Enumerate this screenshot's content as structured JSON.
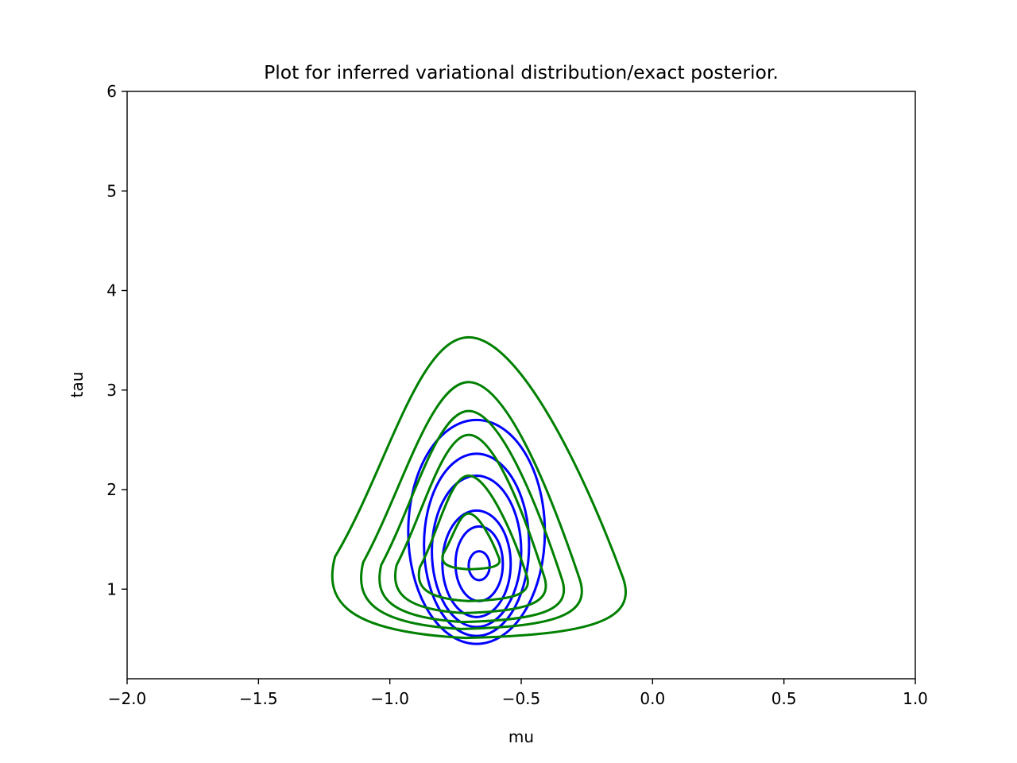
{
  "chart_data": {
    "type": "contour",
    "title": "Plot for inferred variational distribution/exact posterior.",
    "xlabel": "mu",
    "ylabel": "tau",
    "xlim": [
      -2.0,
      1.0
    ],
    "ylim": [
      0.1,
      6.0
    ],
    "xticks": [
      -2.0,
      -1.5,
      -1.0,
      -0.5,
      0.0,
      0.5,
      1.0
    ],
    "xtick_labels": [
      "−2.0",
      "−1.5",
      "−1.0",
      "−0.5",
      "0.0",
      "0.5",
      "1.0"
    ],
    "yticks": [
      1,
      2,
      3,
      4,
      5,
      6
    ],
    "ytick_labels": [
      "1",
      "2",
      "3",
      "4",
      "5",
      "6"
    ],
    "grid": false,
    "series": [
      {
        "color": "#0000ff",
        "levels": [
          {
            "x": [
              -0.93,
              -0.41
            ],
            "y": [
              0.45,
              2.7
            ]
          },
          {
            "x": [
              -0.87,
              -0.47
            ],
            "y": [
              0.53,
              2.36
            ]
          },
          {
            "x": [
              -0.84,
              -0.5
            ],
            "y": [
              0.62,
              2.14
            ]
          },
          {
            "x": [
              -0.8,
              -0.54
            ],
            "y": [
              0.72,
              1.79
            ]
          },
          {
            "x": [
              -0.75,
              -0.57
            ],
            "y": [
              0.88,
              1.63
            ]
          },
          {
            "x": [
              -0.7,
              -0.62
            ],
            "y": [
              1.09,
              1.38
            ]
          }
        ]
      },
      {
        "color": "#008000",
        "peak": {
          "x": -0.7,
          "y": 1.52
        },
        "levels": [
          {
            "x": [
              -1.22,
              -0.09
            ],
            "y": [
              0.51,
              3.53
            ]
          },
          {
            "x": [
              -1.11,
              -0.26
            ],
            "y": [
              0.6,
              3.08
            ]
          },
          {
            "x": [
              -1.04,
              -0.33
            ],
            "y": [
              0.67,
              2.79
            ]
          },
          {
            "x": [
              -0.98,
              -0.4
            ],
            "y": [
              0.76,
              2.55
            ]
          },
          {
            "x": [
              -0.89,
              -0.47
            ],
            "y": [
              0.88,
              2.14
            ]
          },
          {
            "x": [
              -0.8,
              -0.58
            ],
            "y": [
              1.2,
              1.76
            ]
          }
        ]
      }
    ]
  }
}
